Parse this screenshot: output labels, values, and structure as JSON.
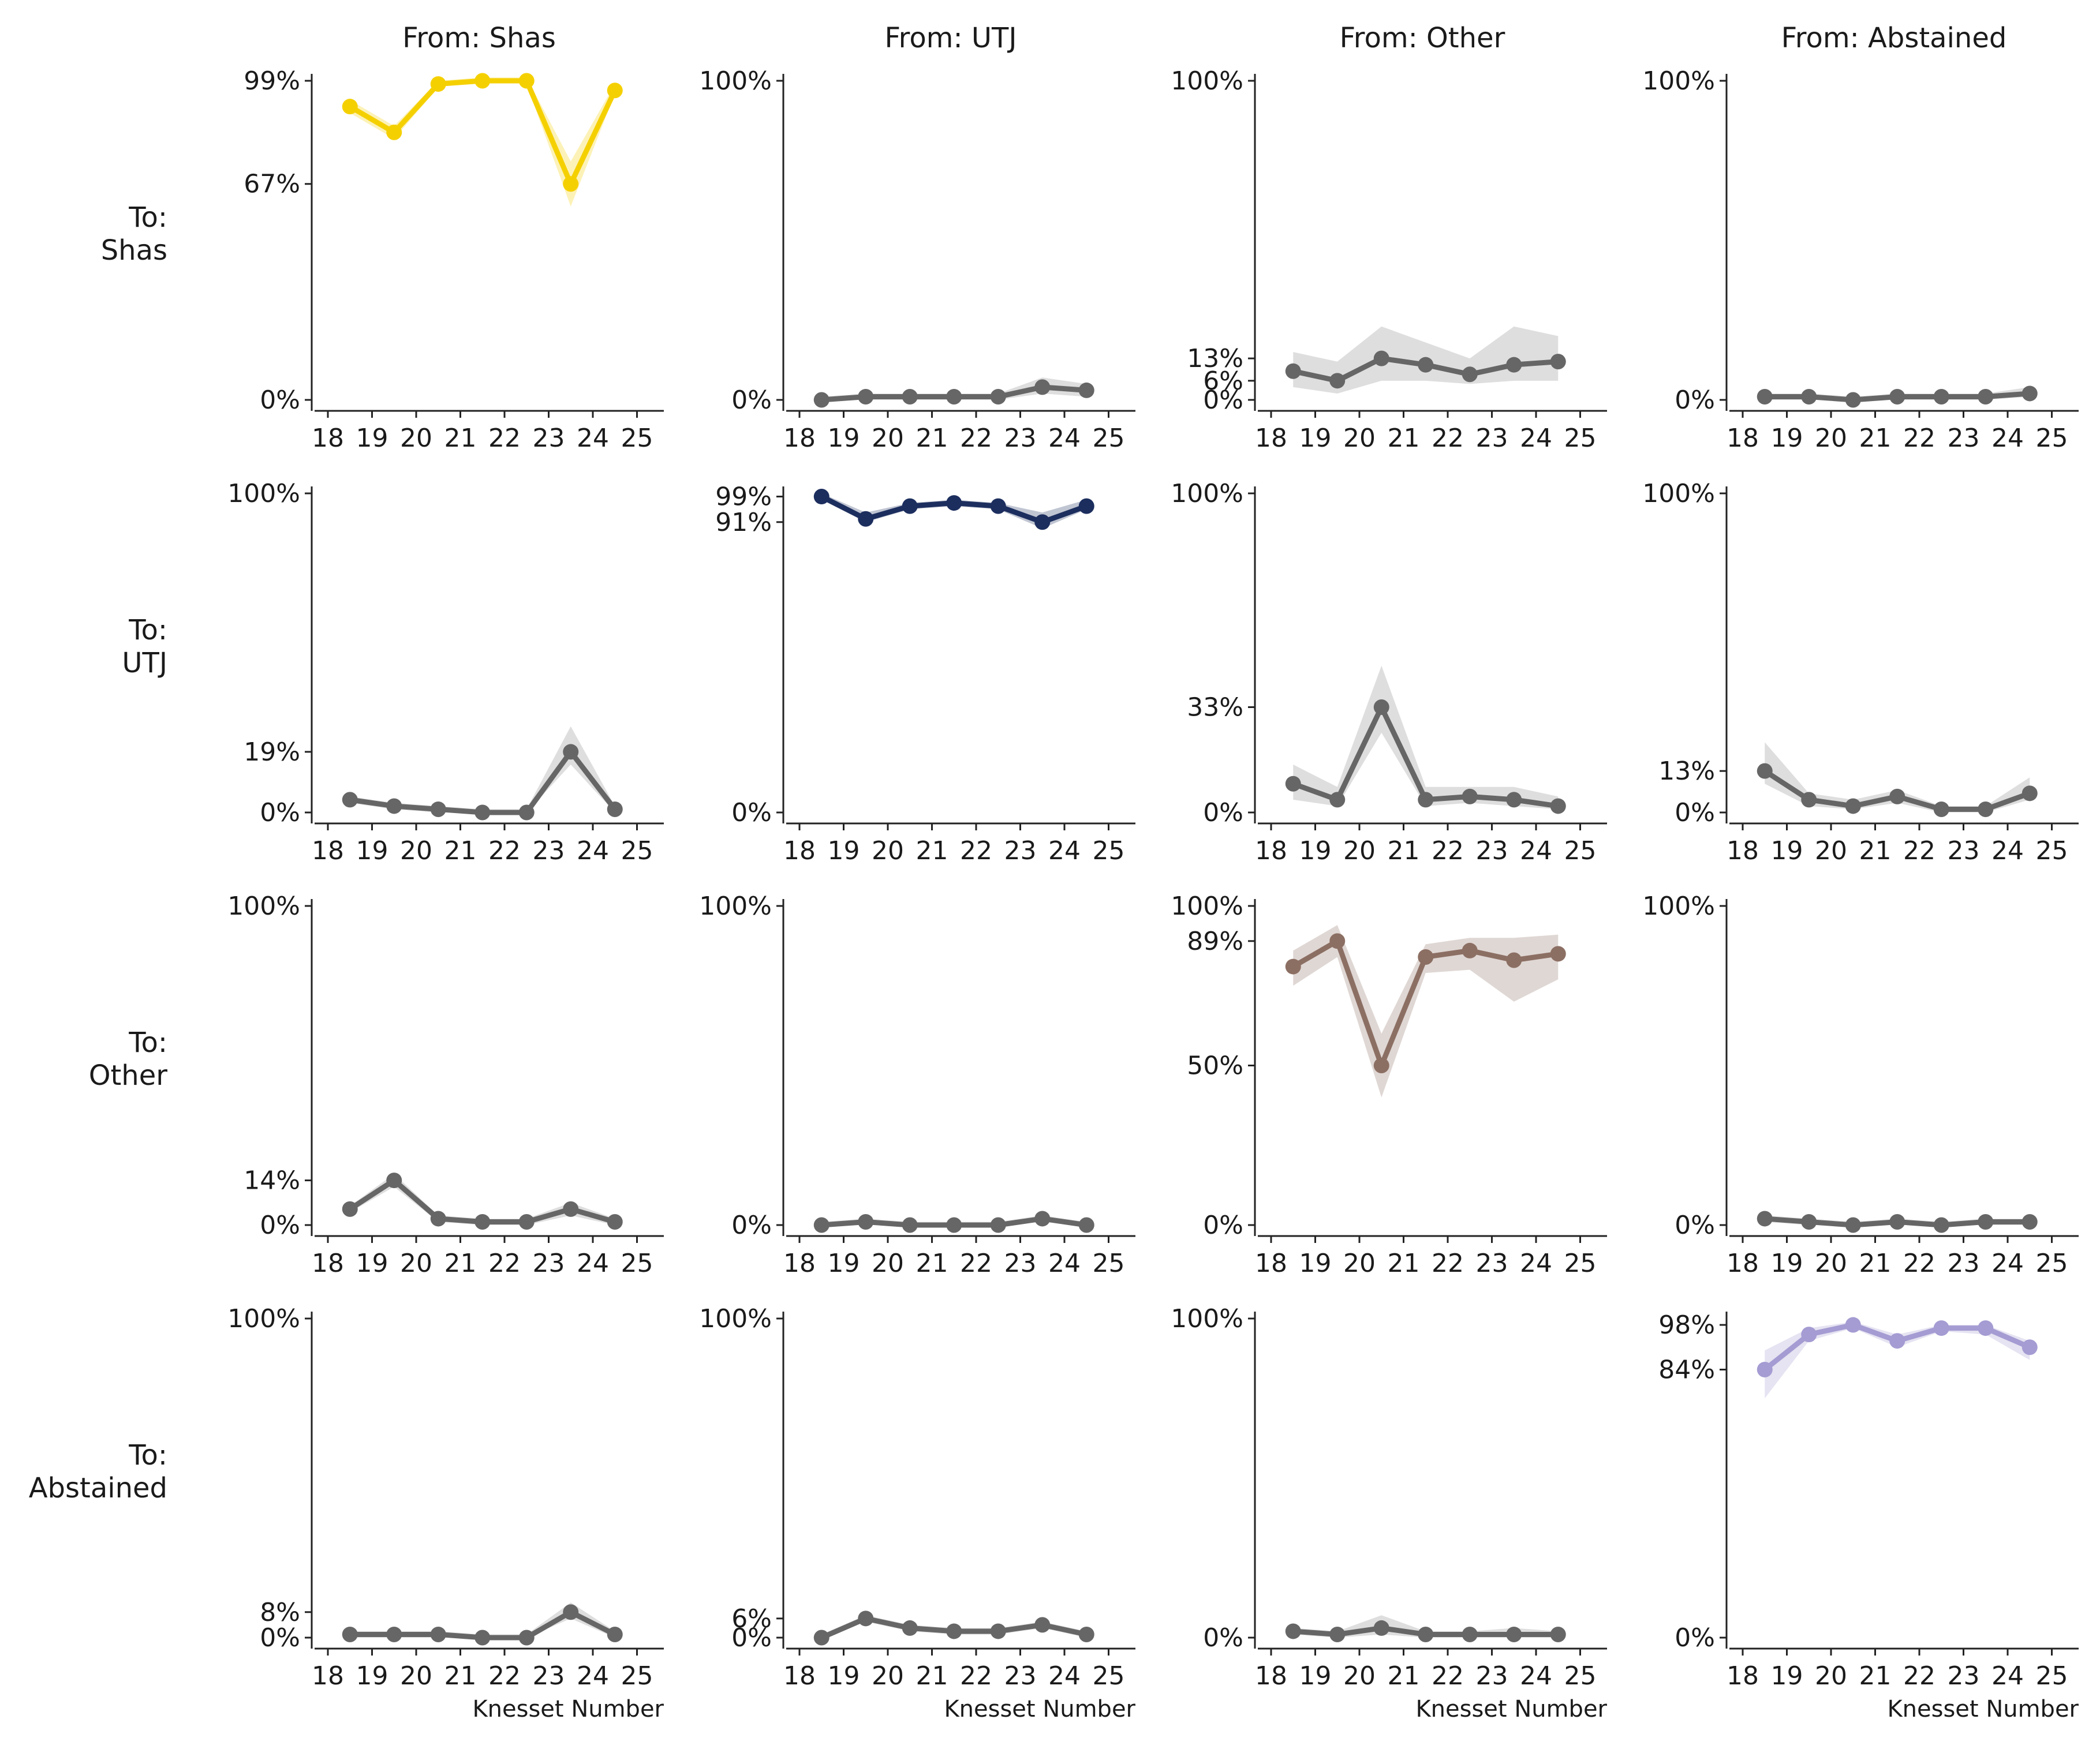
{
  "chart_data": {
    "type": "line",
    "description_colors": {
      "Shas": "#f5d000",
      "UTJ": "#1c2e5e",
      "Other": "#8c6f63",
      "Abstained": "#a49cd2",
      "neutral": "#666666",
      "neutral_band": "#bdbdbd"
    },
    "x": [
      18,
      19,
      20,
      21,
      22,
      23,
      24,
      25
    ],
    "x_ticks": [
      "18",
      "19",
      "20",
      "21",
      "22",
      "23",
      "24",
      "25"
    ],
    "xlabel": "Knesset Number",
    "col_titles": [
      "From: Shas",
      "From: UTJ",
      "From: Other",
      "From: Abstained"
    ],
    "row_titles": [
      [
        "To:",
        "Shas"
      ],
      [
        "To:",
        "UTJ"
      ],
      [
        "To:",
        "Other"
      ],
      [
        "To:",
        "Abstained"
      ]
    ],
    "from_keys": [
      "Shas",
      "UTJ",
      "Other",
      "Abstained"
    ],
    "to_keys": [
      "Shas",
      "UTJ",
      "Other",
      "Abstained"
    ],
    "panels": [
      [
        {
          "from": "Shas",
          "to": "Shas",
          "ylim": [
            0,
            99
          ],
          "yticks": [
            0,
            67,
            99
          ],
          "ytick_labels": [
            "0%",
            "67%",
            "99%"
          ],
          "values": [
            91,
            83,
            98,
            99,
            99,
            67,
            96
          ],
          "lower": [
            89,
            81,
            97,
            99,
            98,
            60,
            95
          ],
          "upper": [
            93,
            85,
            99,
            100,
            100,
            74,
            98
          ]
        },
        {
          "from": "UTJ",
          "to": "Shas",
          "ylim": [
            0,
            100
          ],
          "yticks": [
            0,
            100
          ],
          "ytick_labels": [
            "0%",
            "100%"
          ],
          "values": [
            0,
            1,
            1,
            1,
            1,
            4,
            3
          ],
          "lower": [
            0,
            0,
            0,
            0,
            0,
            2,
            1
          ],
          "upper": [
            1,
            2,
            2,
            2,
            2,
            7,
            5
          ]
        },
        {
          "from": "Other",
          "to": "Shas",
          "ylim": [
            0,
            100
          ],
          "yticks": [
            0,
            6,
            13,
            100
          ],
          "ytick_labels": [
            "0%",
            "6%",
            "13%",
            "100%"
          ],
          "values": [
            9,
            6,
            13,
            11,
            8,
            11,
            12
          ],
          "lower": [
            4,
            2,
            6,
            6,
            5,
            6,
            6
          ],
          "upper": [
            15,
            12,
            23,
            18,
            13,
            23,
            20
          ]
        },
        {
          "from": "Abstained",
          "to": "Shas",
          "ylim": [
            0,
            100
          ],
          "yticks": [
            0,
            100
          ],
          "ytick_labels": [
            "0%",
            "100%"
          ],
          "values": [
            1,
            1,
            0,
            1,
            1,
            1,
            2
          ],
          "lower": [
            0,
            0,
            0,
            0,
            0,
            0,
            1
          ],
          "upper": [
            2,
            2,
            1,
            2,
            2,
            2,
            4
          ]
        }
      ],
      [
        {
          "from": "Shas",
          "to": "UTJ",
          "ylim": [
            0,
            100
          ],
          "yticks": [
            0,
            19,
            100
          ],
          "ytick_labels": [
            "0%",
            "19%",
            "100%"
          ],
          "values": [
            4,
            2,
            1,
            0,
            0,
            19,
            1
          ],
          "lower": [
            3,
            1,
            0,
            0,
            0,
            15,
            0
          ],
          "upper": [
            5,
            3,
            2,
            1,
            1,
            27,
            2
          ]
        },
        {
          "from": "UTJ",
          "to": "UTJ",
          "ylim": [
            0,
            100
          ],
          "yticks": [
            0,
            91,
            99
          ],
          "ytick_labels": [
            "0%",
            "91%",
            "99%"
          ],
          "values": [
            99,
            92,
            96,
            97,
            96,
            91,
            96
          ],
          "lower": [
            98,
            91,
            95,
            96,
            95,
            89,
            95
          ],
          "upper": [
            100,
            94,
            97,
            98,
            97,
            94,
            98
          ]
        },
        {
          "from": "Other",
          "to": "UTJ",
          "ylim": [
            0,
            100
          ],
          "yticks": [
            0,
            33,
            100
          ],
          "ytick_labels": [
            "0%",
            "33%",
            "100%"
          ],
          "values": [
            9,
            4,
            33,
            4,
            5,
            4,
            2
          ],
          "lower": [
            4,
            2,
            25,
            2,
            3,
            2,
            1
          ],
          "upper": [
            15,
            8,
            46,
            8,
            8,
            8,
            5
          ]
        },
        {
          "from": "Abstained",
          "to": "UTJ",
          "ylim": [
            0,
            100
          ],
          "yticks": [
            0,
            13,
            100
          ],
          "ytick_labels": [
            "0%",
            "13%",
            "100%"
          ],
          "values": [
            13,
            4,
            2,
            5,
            1,
            1,
            6
          ],
          "lower": [
            9,
            2,
            1,
            3,
            0,
            0,
            4
          ],
          "upper": [
            22,
            6,
            4,
            7,
            2,
            2,
            11
          ]
        }
      ],
      [
        {
          "from": "Shas",
          "to": "Other",
          "ylim": [
            0,
            100
          ],
          "yticks": [
            0,
            14,
            100
          ],
          "ytick_labels": [
            "0%",
            "14%",
            "100%"
          ],
          "values": [
            5,
            14,
            2,
            1,
            1,
            5,
            1
          ],
          "lower": [
            4,
            12,
            1,
            0,
            0,
            3,
            0
          ],
          "upper": [
            6,
            16,
            3,
            2,
            2,
            7,
            2
          ]
        },
        {
          "from": "UTJ",
          "to": "Other",
          "ylim": [
            0,
            100
          ],
          "yticks": [
            0,
            100
          ],
          "ytick_labels": [
            "0%",
            "100%"
          ],
          "values": [
            0,
            1,
            0,
            0,
            0,
            2,
            0
          ],
          "lower": [
            0,
            0,
            0,
            0,
            0,
            1,
            0
          ],
          "upper": [
            1,
            2,
            1,
            1,
            1,
            3,
            1
          ]
        },
        {
          "from": "Other",
          "to": "Other",
          "ylim": [
            0,
            100
          ],
          "yticks": [
            0,
            50,
            89,
            100
          ],
          "ytick_labels": [
            "0%",
            "50%",
            "89%",
            "100%"
          ],
          "values": [
            81,
            89,
            50,
            84,
            86,
            83,
            85
          ],
          "lower": [
            75,
            84,
            40,
            79,
            80,
            70,
            77
          ],
          "upper": [
            86,
            94,
            60,
            88,
            90,
            90,
            91
          ]
        },
        {
          "from": "Abstained",
          "to": "Other",
          "ylim": [
            0,
            100
          ],
          "yticks": [
            0,
            100
          ],
          "ytick_labels": [
            "0%",
            "100%"
          ],
          "values": [
            2,
            1,
            0,
            1,
            0,
            1,
            1
          ],
          "lower": [
            1,
            0,
            0,
            0,
            0,
            0,
            0
          ],
          "upper": [
            3,
            2,
            1,
            2,
            1,
            2,
            2
          ]
        }
      ],
      [
        {
          "from": "Shas",
          "to": "Abstained",
          "ylim": [
            0,
            100
          ],
          "yticks": [
            0,
            8,
            100
          ],
          "ytick_labels": [
            "0%",
            "8%",
            "100%"
          ],
          "values": [
            1,
            1,
            1,
            0,
            0,
            8,
            1
          ],
          "lower": [
            0,
            0,
            0,
            0,
            0,
            6,
            0
          ],
          "upper": [
            2,
            2,
            2,
            1,
            1,
            11,
            2
          ]
        },
        {
          "from": "UTJ",
          "to": "Abstained",
          "ylim": [
            0,
            100
          ],
          "yticks": [
            0,
            6,
            100
          ],
          "ytick_labels": [
            "0%",
            "6%",
            "100%"
          ],
          "values": [
            0,
            6,
            3,
            2,
            2,
            4,
            1
          ],
          "lower": [
            0,
            5,
            2,
            1,
            1,
            3,
            0
          ],
          "upper": [
            1,
            7,
            4,
            3,
            3,
            5,
            2
          ]
        },
        {
          "from": "Other",
          "to": "Abstained",
          "ylim": [
            0,
            100
          ],
          "yticks": [
            0,
            100
          ],
          "ytick_labels": [
            "0%",
            "100%"
          ],
          "values": [
            2,
            1,
            3,
            1,
            1,
            1,
            1
          ],
          "lower": [
            1,
            0,
            1,
            0,
            0,
            0,
            0
          ],
          "upper": [
            3,
            2,
            7,
            2,
            2,
            3,
            2
          ]
        },
        {
          "from": "Abstained",
          "to": "Abstained",
          "ylim": [
            0,
            100
          ],
          "yticks": [
            0,
            84,
            98
          ],
          "ytick_labels": [
            "0%",
            "84%",
            "98%"
          ],
          "values": [
            84,
            95,
            98,
            93,
            97,
            97,
            91
          ],
          "lower": [
            75,
            93,
            97,
            91,
            96,
            95,
            87
          ],
          "upper": [
            90,
            97,
            99,
            95,
            98,
            98,
            93
          ]
        }
      ]
    ]
  }
}
